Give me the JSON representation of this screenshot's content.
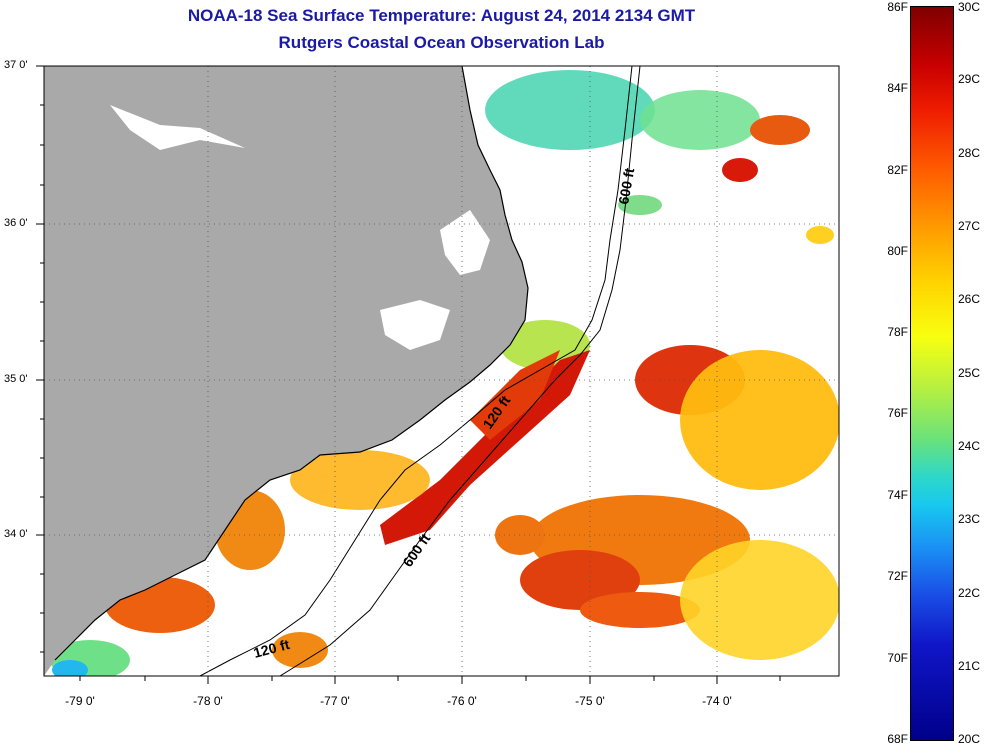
{
  "title": {
    "line1": "NOAA-18 Sea Surface Temperature:  August 24, 2014 2134 GMT",
    "line2": "Rutgers Coastal Ocean Observation Lab"
  },
  "map": {
    "lat_labels": [
      "37 0'",
      "36 0'",
      "35 0'",
      "34 0'"
    ],
    "lon_labels": [
      "-79 0'",
      "-78 0'",
      "-77 0'",
      "-76 0'",
      "-75 0'",
      "-74 0'"
    ],
    "contour_labels": {
      "north_600": "600 ft",
      "mid_120": "120 ft",
      "south_600": "600 ft",
      "south_120": "120 ft"
    },
    "colors": {
      "land": "#a9a9a9",
      "water_no_data": "#ffffff",
      "grid": "#555555"
    }
  },
  "colorbar": {
    "fahrenheit": [
      "86F",
      "84F",
      "82F",
      "80F",
      "78F",
      "76F",
      "74F",
      "72F",
      "70F",
      "68F"
    ],
    "celsius": [
      "30C",
      "29C",
      "28C",
      "27C",
      "26C",
      "25C",
      "24C",
      "23C",
      "22C",
      "21C",
      "20C"
    ]
  }
}
